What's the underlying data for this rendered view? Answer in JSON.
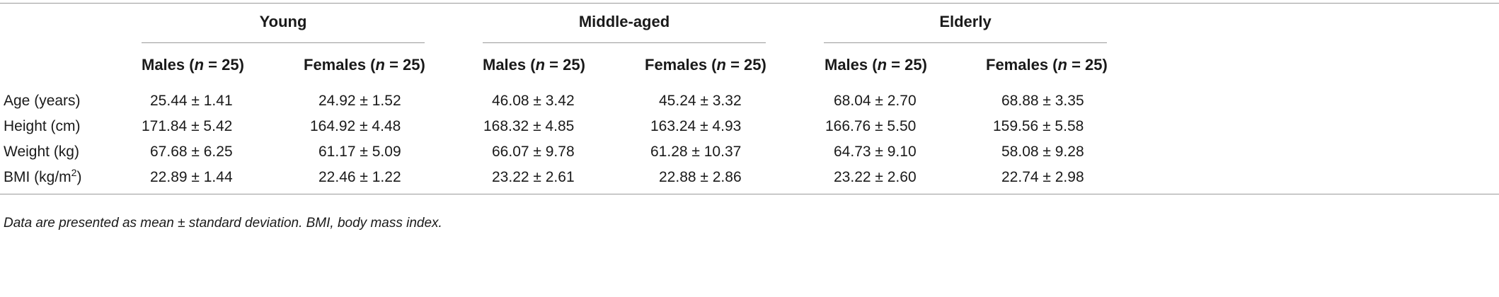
{
  "table": {
    "groups": [
      "Young",
      "Middle-aged",
      "Elderly"
    ],
    "subheaders": [
      {
        "sex": "Males",
        "n_label": "n",
        "n_value": " = 25"
      },
      {
        "sex": "Females",
        "n_label": "n",
        "n_value": " = 25"
      },
      {
        "sex": "Males",
        "n_label": "n",
        "n_value": " = 25"
      },
      {
        "sex": "Females",
        "n_label": "n",
        "n_value": " = 25"
      },
      {
        "sex": "Males",
        "n_label": "n",
        "n_value": " = 25"
      },
      {
        "sex": "Females",
        "n_label": "n",
        "n_value": " = 25"
      }
    ],
    "rows": [
      {
        "label": "Age (years)",
        "label_sup": "",
        "label_suffix": "",
        "cells": [
          "25.44 ± 1.41",
          "24.92 ± 1.52",
          "46.08 ± 3.42",
          "45.24 ± 3.32",
          "68.04 ± 2.70",
          "68.88 ± 3.35"
        ]
      },
      {
        "label": "Height (cm)",
        "label_sup": "",
        "label_suffix": "",
        "cells": [
          "171.84 ± 5.42",
          "164.92 ± 4.48",
          "168.32 ± 4.85",
          "163.24 ± 4.93",
          "166.76 ± 5.50",
          "159.56 ± 5.58"
        ]
      },
      {
        "label": "Weight (kg)",
        "label_sup": "",
        "label_suffix": "",
        "cells": [
          "67.68 ± 6.25",
          "61.17 ± 5.09",
          "66.07 ± 9.78",
          "61.28 ± 10.37",
          "64.73 ± 9.10",
          "58.08 ± 9.28"
        ]
      },
      {
        "label": "BMI (kg/m",
        "label_sup": "2",
        "label_suffix": ")",
        "cells": [
          "22.89 ± 1.44",
          "22.46 ± 1.22",
          "23.22 ± 2.61",
          "22.88 ± 2.86",
          "23.22 ± 2.60",
          "22.74 ± 2.98"
        ]
      }
    ],
    "footnote": "Data are presented as mean ± standard deviation. BMI, body mass index."
  }
}
